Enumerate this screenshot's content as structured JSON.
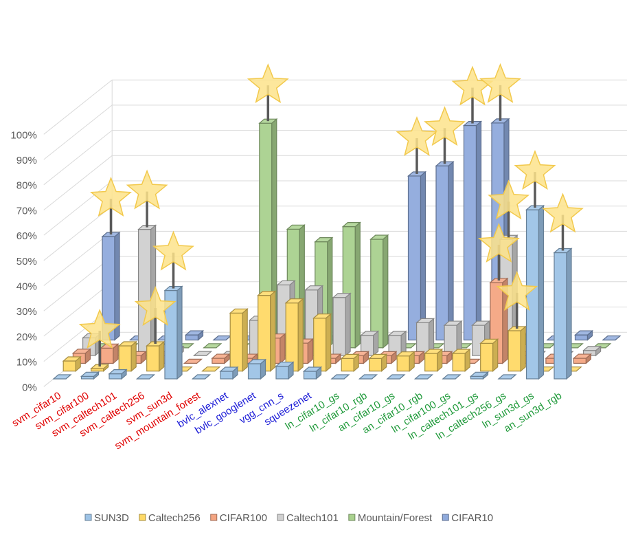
{
  "chart_data": {
    "type": "bar",
    "subtype": "3d-column",
    "ylim": [
      0,
      100
    ],
    "y_tick_labels": [
      "0%",
      "10%",
      "20%",
      "30%",
      "40%",
      "50%",
      "60%",
      "70%",
      "80%",
      "90%",
      "100%"
    ],
    "categories": [
      "svm_cifar10",
      "svm_cifar100",
      "svm_caltech101",
      "svm_caltech256",
      "svm_sun3d",
      "svm_mountain_forest",
      "bvlc_alexnet",
      "bvlc_googlenet",
      "vgg_cnn_s",
      "squeezenet",
      "ln_cifar10_gs",
      "ln_cifar10_rgb",
      "an_cifar10_gs",
      "an_cifar10_rgb",
      "ln_cifar100_gs",
      "ln_caltech101_gs",
      "ln_caltech256_gs",
      "ln_sun3d_gs",
      "an_sun3d_rgb"
    ],
    "category_colors": [
      "#e00000",
      "#e00000",
      "#e00000",
      "#e00000",
      "#e00000",
      "#e00000",
      "#1a1ad6",
      "#1a1ad6",
      "#1a1ad6",
      "#1a1ad6",
      "#1f9a3a",
      "#1f9a3a",
      "#1f9a3a",
      "#1f9a3a",
      "#1f9a3a",
      "#1f9a3a",
      "#1f9a3a",
      "#1f9a3a",
      "#1f9a3a"
    ],
    "series": [
      {
        "name": "SUN3D",
        "color": "#9dc3e6",
        "values": [
          0,
          1,
          2,
          0,
          35,
          0,
          3,
          6,
          5,
          3,
          0,
          0,
          0,
          0,
          0,
          1,
          0,
          67,
          50
        ]
      },
      {
        "name": "Caltech256",
        "color": "#ffd966",
        "values": [
          4,
          1,
          10,
          10,
          0,
          0,
          23,
          30,
          27,
          21,
          5,
          5,
          6,
          7,
          7,
          11,
          16,
          0,
          0
        ]
      },
      {
        "name": "CIFAR100",
        "color": "#f4a582",
        "values": [
          4,
          6,
          3,
          3,
          0,
          2,
          2,
          10,
          8,
          2,
          3,
          3,
          3,
          3,
          0,
          32,
          3,
          2,
          2
        ]
      },
      {
        "name": "Caltech101",
        "color": "#d0d0d0",
        "values": [
          7,
          2,
          50,
          2,
          0,
          0,
          14,
          28,
          26,
          23,
          8,
          8,
          13,
          12,
          12,
          46,
          0,
          0,
          2
        ]
      },
      {
        "name": "Mountain/Forest",
        "color": "#a9d18e",
        "values": [
          0,
          0,
          0,
          0,
          0,
          0,
          89,
          47,
          42,
          48,
          43,
          0,
          0,
          0,
          0,
          4,
          0,
          0,
          0
        ]
      },
      {
        "name": "CIFAR10",
        "color": "#8faadc",
        "values": [
          41,
          0,
          0,
          2,
          0,
          0,
          0,
          0,
          0,
          0,
          0,
          65,
          69,
          85,
          86,
          0,
          0,
          2,
          0
        ]
      }
    ],
    "stars": [
      {
        "series": "CIFAR10",
        "category": "svm_cifar10"
      },
      {
        "series": "Caltech256",
        "category": "svm_cifar100"
      },
      {
        "series": "Caltech101",
        "category": "svm_caltech101"
      },
      {
        "series": "Caltech256",
        "category": "svm_caltech256"
      },
      {
        "series": "SUN3D",
        "category": "svm_sun3d"
      },
      {
        "series": "Mountain/Forest",
        "category": "bvlc_alexnet"
      },
      {
        "series": "CIFAR10",
        "category": "ln_cifar10_rgb"
      },
      {
        "series": "CIFAR10",
        "category": "an_cifar10_gs"
      },
      {
        "series": "CIFAR10",
        "category": "an_cifar10_rgb"
      },
      {
        "series": "CIFAR10",
        "category": "ln_cifar100_gs"
      },
      {
        "series": "CIFAR100",
        "category": "ln_caltech101_gs"
      },
      {
        "series": "Caltech101",
        "category": "ln_caltech101_gs"
      },
      {
        "series": "Caltech256",
        "category": "ln_caltech256_gs"
      },
      {
        "series": "SUN3D",
        "category": "ln_sun3d_gs"
      },
      {
        "series": "SUN3D",
        "category": "an_sun3d_rgb"
      }
    ],
    "grid": true,
    "legend": {
      "position": "bottom",
      "entries": [
        "SUN3D",
        "Caltech256",
        "CIFAR100",
        "Caltech101",
        "Mountain/Forest",
        "CIFAR10"
      ]
    },
    "colors": {
      "grid": "#d9d9d9",
      "axis_text": "#595959",
      "star_fill": "#fde38b",
      "star_stroke": "#f2c94c",
      "star_stem": "#595959"
    }
  }
}
